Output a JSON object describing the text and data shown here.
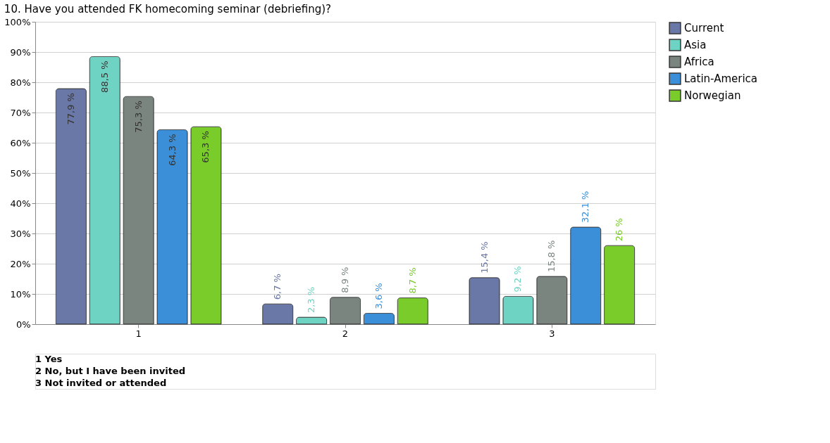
{
  "chart_data": {
    "type": "bar",
    "title": "10. Have you attended FK homecoming seminar (debriefing)?",
    "categories": [
      "1",
      "2",
      "3"
    ],
    "series": [
      {
        "name": "Current",
        "color": "#6a78a8",
        "values": [
          77.9,
          6.7,
          15.4
        ],
        "value_labels": [
          "77,9 %",
          "6,7 %",
          "15,4 %"
        ]
      },
      {
        "name": "Asia",
        "color": "#6fd3c3",
        "values": [
          88.5,
          2.3,
          9.2
        ],
        "value_labels": [
          "88,5 %",
          "2,3 %",
          "9,2 %"
        ]
      },
      {
        "name": "Africa",
        "color": "#7a8580",
        "values": [
          75.3,
          8.9,
          15.8
        ],
        "value_labels": [
          "75,3 %",
          "8,9 %",
          "15,8 %"
        ]
      },
      {
        "name": "Latin-America",
        "color": "#3a8fd8",
        "values": [
          64.3,
          3.6,
          32.1
        ],
        "value_labels": [
          "64,3 %",
          "3,6 %",
          "32,1 %"
        ]
      },
      {
        "name": "Norwegian",
        "color": "#7acc2a",
        "values": [
          65.3,
          8.7,
          26
        ],
        "value_labels": [
          "65,3 %",
          "8,7 %",
          "26 %"
        ]
      }
    ],
    "ylim": [
      0,
      100
    ],
    "yticks": [
      {
        "value": 0,
        "label": "0%"
      },
      {
        "value": 10,
        "label": "10%"
      },
      {
        "value": 20,
        "label": "20%"
      },
      {
        "value": 30,
        "label": "30%"
      },
      {
        "value": 40,
        "label": "40%"
      },
      {
        "value": 50,
        "label": "50%"
      },
      {
        "value": 60,
        "label": "60%"
      },
      {
        "value": 70,
        "label": "70%"
      },
      {
        "value": 80,
        "label": "80%"
      },
      {
        "value": 90,
        "label": "90%"
      },
      {
        "value": 100,
        "label": "100%"
      }
    ],
    "grid": true,
    "legend": "top right",
    "annotations": [
      "1 Yes",
      "2 No, but I have been invited",
      "3 Not invited or attended"
    ]
  }
}
